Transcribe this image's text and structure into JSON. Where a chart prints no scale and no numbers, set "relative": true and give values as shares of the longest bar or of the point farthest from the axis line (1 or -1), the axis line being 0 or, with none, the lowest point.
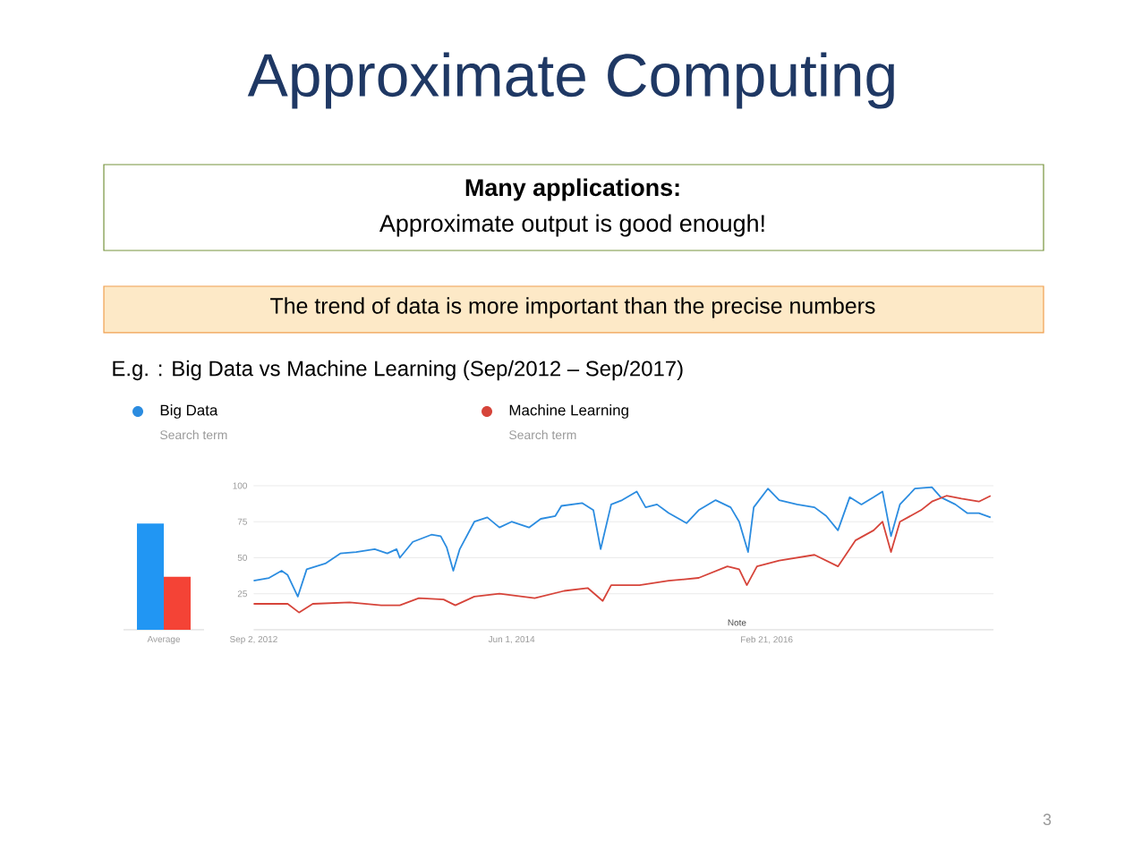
{
  "chart_data": [
    {
      "type": "bar",
      "relative": true,
      "categories": [
        "Average"
      ],
      "series": [
        {
          "color": "#2196f3",
          "values": [
            1
          ]
        },
        {
          "color": "#f44336",
          "values": [
            0.5
          ]
        }
      ]
    },
    {
      "type": "line",
      "title": "Approximate Computing",
      "annotations": [
        "Many applications:",
        "Approximate output is good enough!",
        "The trend of data is more important than the precise numbers",
        "E.g. : Big Data vs Machine Learning (Sep/2012 – Sep/2017)",
        "Search term",
        "Search term",
        "Note",
        "3"
      ],
      "xlim": [
        "2012-09-02",
        "2017-09-03"
      ],
      "xticks": [
        {
          "value": "2012-09-02",
          "label": "Sep 2, 2012"
        },
        {
          "value": "2014-06-01",
          "label": "Jun 1, 2014"
        },
        {
          "value": "2016-02-21",
          "label": "Feb 21, 2016"
        }
      ],
      "ylim": [
        0,
        100
      ],
      "yticks": [
        25,
        50,
        75,
        100
      ],
      "grid": "y",
      "legend": "top",
      "marker": "none",
      "line_style": "solid",
      "series": [
        {
          "name": "Big Data",
          "color": "#2b8ce0",
          "x": [
            "2012-09-02",
            "2012-10-10",
            "2012-11-10",
            "2012-11-25",
            "2012-12-20",
            "2013-01-11",
            "2013-02-26",
            "2013-04-04",
            "2013-05-13",
            "2013-06-28",
            "2013-07-29",
            "2013-08-21",
            "2013-08-29",
            "2013-09-30",
            "2013-11-15",
            "2013-12-08",
            "2013-12-23",
            "2014-01-08",
            "2014-01-24",
            "2014-03-01",
            "2014-04-02",
            "2014-05-02",
            "2014-06-01",
            "2014-07-14",
            "2014-08-12",
            "2014-09-17",
            "2014-10-02",
            "2014-11-22",
            "2014-12-20",
            "2015-01-07",
            "2015-02-02",
            "2015-03-01",
            "2015-04-06",
            "2015-04-28",
            "2015-05-26",
            "2015-06-24",
            "2015-08-07",
            "2015-09-06",
            "2015-10-18",
            "2015-11-24",
            "2015-12-15",
            "2016-01-06",
            "2016-01-20",
            "2016-02-24",
            "2016-03-23",
            "2016-05-06",
            "2016-06-18",
            "2016-07-17",
            "2016-08-15",
            "2016-09-13",
            "2016-10-12",
            "2016-11-11",
            "2016-12-03",
            "2016-12-24",
            "2017-01-15",
            "2017-02-21",
            "2017-04-04",
            "2017-04-26",
            "2017-06-01",
            "2017-06-30",
            "2017-07-29",
            "2017-08-27"
          ],
          "values": [
            34,
            36,
            41,
            38,
            23,
            42,
            46,
            53,
            54,
            56,
            53,
            56,
            50,
            61,
            66,
            65,
            57,
            41,
            56,
            75,
            78,
            71,
            75,
            71,
            77,
            79,
            86,
            88,
            83,
            56,
            87,
            90,
            96,
            85,
            87,
            81,
            74,
            83,
            90,
            85,
            75,
            54,
            85,
            98,
            90,
            87,
            85,
            79,
            69,
            92,
            87,
            92,
            96,
            65,
            87,
            98,
            99,
            92,
            87,
            81,
            81,
            78
          ]
        },
        {
          "name": "Machine Learning",
          "color": "#d6443a",
          "x": [
            "2012-09-02",
            "2012-11-25",
            "2012-12-23",
            "2013-01-26",
            "2013-04-27",
            "2013-07-14",
            "2013-08-29",
            "2013-10-15",
            "2013-12-15",
            "2014-01-13",
            "2014-03-01",
            "2014-05-02",
            "2014-07-28",
            "2014-10-09",
            "2014-12-06",
            "2015-01-12",
            "2015-02-02",
            "2015-04-13",
            "2015-06-24",
            "2015-09-06",
            "2015-11-16",
            "2015-12-15",
            "2016-01-03",
            "2016-01-28",
            "2016-03-23",
            "2016-06-18",
            "2016-08-15",
            "2016-09-27",
            "2016-11-11",
            "2016-12-03",
            "2016-12-24",
            "2017-01-15",
            "2017-03-08",
            "2017-04-04",
            "2017-05-10",
            "2017-06-16",
            "2017-07-29",
            "2017-08-27"
          ],
          "values": [
            18,
            18,
            12,
            18,
            19,
            17,
            17,
            22,
            21,
            17,
            23,
            25,
            22,
            27,
            29,
            20,
            31,
            31,
            34,
            36,
            44,
            42,
            31,
            44,
            48,
            52,
            44,
            62,
            69,
            75,
            54,
            75,
            83,
            89,
            93,
            91,
            89,
            93
          ]
        }
      ]
    }
  ]
}
